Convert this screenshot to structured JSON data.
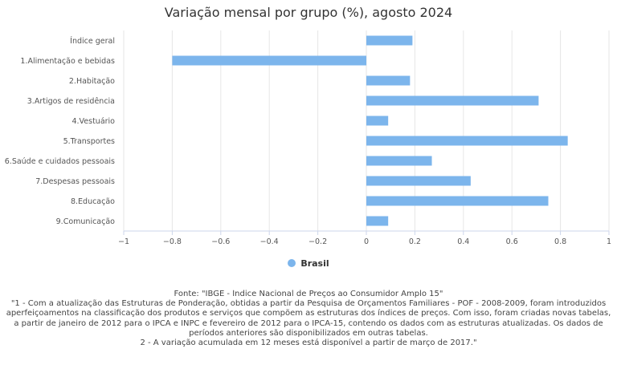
{
  "chart_data": {
    "type": "bar",
    "orientation": "horizontal",
    "title": "Variação mensal por grupo (%), agosto 2024",
    "categories": [
      "Índice geral",
      "1.Alimentação e bebidas",
      "2.Habitação",
      "3.Artigos de residência",
      "4.Vestuário",
      "5.Transportes",
      "6.Saúde e cuidados pessoais",
      "7.Despesas pessoais",
      "8.Educação",
      "9.Comunicação"
    ],
    "series": [
      {
        "name": "Brasil",
        "values": [
          0.19,
          -0.8,
          0.18,
          0.71,
          0.09,
          0.83,
          0.27,
          0.43,
          0.75,
          0.09
        ],
        "color": "#7cb5ec"
      }
    ],
    "xlim": [
      -1,
      1
    ],
    "xticks": [
      -1,
      -0.8,
      -0.6,
      -0.4,
      -0.2,
      0,
      0.2,
      0.4,
      0.6,
      0.8,
      1
    ],
    "xtick_labels": [
      "−1",
      "−0.8",
      "−0.6",
      "−0.4",
      "−0.2",
      "0",
      "0.2",
      "0.4",
      "0.6",
      "0.8",
      "1"
    ],
    "grid": "vertical",
    "legend_position": "bottom-center"
  },
  "legend": {
    "label": "Brasil"
  },
  "footer": {
    "lines": [
      "Fonte: \"IBGE - Índice Nacional de Preços ao Consumidor Amplo 15\"",
      "\"1 - Com a atualização das Estruturas de Ponderação, obtidas a partir da Pesquisa de Orçamentos Familiares - POF - 2008-2009, foram introduzidos",
      "aperfeiçoamentos na classificação dos produtos e serviços que compõem as estruturas dos índices de preços. Com isso, foram criadas novas tabelas,",
      "a partir de janeiro de 2012 para o IPCA e INPC e fevereiro de 2012 para o IPCA-15, contendo os dados com as estruturas atualizadas. Os dados de",
      "períodos anteriores são disponibilizados em outras tabelas.",
      "2 - A variação acumulada em 12 meses está disponível a partir de março de 2017.\""
    ]
  }
}
